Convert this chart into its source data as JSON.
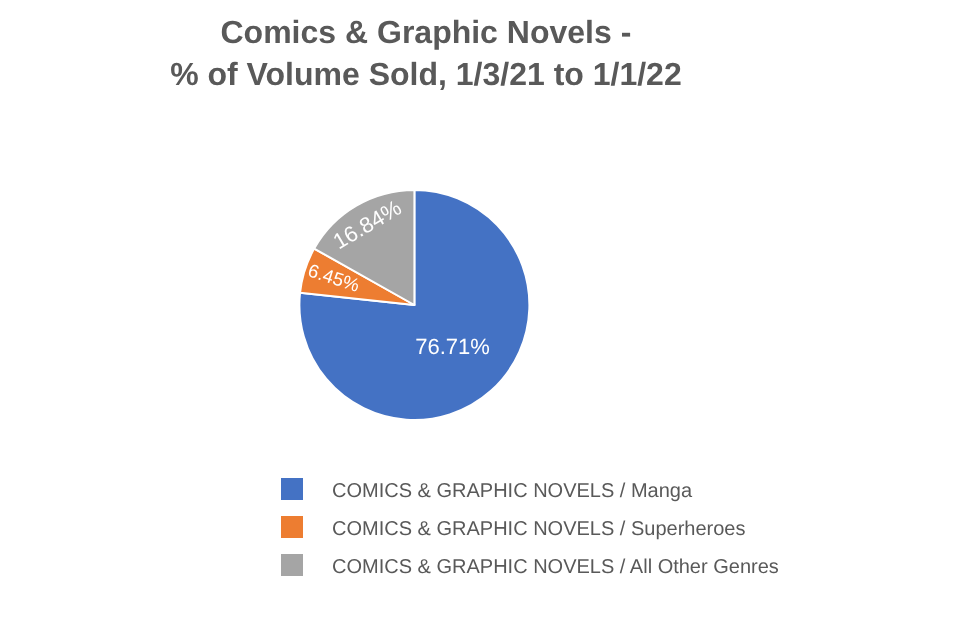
{
  "chart_data": {
    "type": "pie",
    "title": "Comics & Graphic Novels -\n% of Volume Sold, 1/3/21 to 1/1/22",
    "categories": [
      "COMICS & GRAPHIC NOVELS / Manga",
      "COMICS & GRAPHIC NOVELS / Superheroes",
      "COMICS & GRAPHIC NOVELS / All Other Genres"
    ],
    "values": [
      76.71,
      6.45,
      16.84
    ],
    "value_labels": [
      "76.71%",
      "6.45%",
      "16.84%"
    ],
    "colors": [
      "#4472c4",
      "#ed7d31",
      "#a5a5a5"
    ],
    "legend": "bottom"
  }
}
